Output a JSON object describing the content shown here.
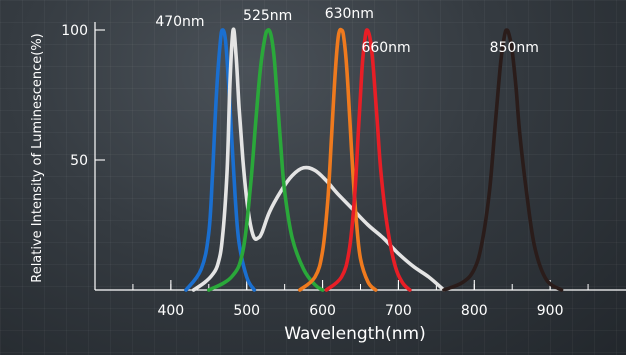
{
  "chart_data": {
    "type": "line",
    "title": "",
    "xlabel": "Wavelength(nm)",
    "ylabel": "Relative Intensity of Luminescence(%)",
    "xlim": [
      300,
      1000
    ],
    "ylim": [
      0,
      100
    ],
    "x_ticks": [
      400,
      500,
      600,
      700,
      800,
      900
    ],
    "y_ticks": [
      50,
      100
    ],
    "grid": false,
    "legend": "none",
    "series": [
      {
        "color": "#1a6fd0",
        "x": [
          420,
          440,
          450,
          455,
          460,
          465,
          468,
          472,
          476,
          480,
          485,
          490,
          500,
          510
        ],
        "y": [
          0,
          8,
          22,
          45,
          75,
          95,
          100,
          96,
          80,
          60,
          35,
          18,
          5,
          0
        ]
      },
      {
        "color": "#e4e4e4",
        "x": [
          430,
          445,
          455,
          462,
          468,
          474,
          478,
          482,
          486,
          490,
          495,
          500,
          505,
          510,
          515,
          520,
          530,
          545,
          560,
          575,
          590,
          605,
          620,
          640,
          660,
          680,
          700,
          720,
          740,
          760
        ],
        "y": [
          0,
          3,
          6,
          10,
          20,
          45,
          80,
          100,
          90,
          70,
          50,
          35,
          25,
          20,
          20,
          22,
          30,
          38,
          44,
          47,
          46,
          42,
          37,
          31,
          25,
          20,
          14,
          9,
          5,
          0
        ]
      },
      {
        "color": "#2aa83a",
        "x": [
          450,
          480,
          495,
          505,
          512,
          518,
          524,
          528,
          532,
          536,
          540,
          545,
          550,
          560,
          575,
          590,
          600
        ],
        "y": [
          0,
          5,
          15,
          40,
          65,
          85,
          97,
          100,
          98,
          90,
          75,
          55,
          38,
          20,
          8,
          2,
          0
        ]
      },
      {
        "color": "#ef7a1e",
        "x": [
          570,
          590,
          600,
          607,
          612,
          617,
          621,
          625,
          628,
          632,
          636,
          640,
          645,
          650,
          660,
          670
        ],
        "y": [
          0,
          5,
          15,
          35,
          60,
          85,
          98,
          100,
          97,
          85,
          65,
          45,
          25,
          12,
          3,
          0
        ]
      },
      {
        "color": "#e81e26",
        "x": [
          605,
          625,
          635,
          642,
          647,
          652,
          656,
          659,
          663,
          667,
          672,
          677,
          685,
          695,
          705,
          715
        ],
        "y": [
          0,
          5,
          15,
          35,
          60,
          85,
          97,
          100,
          96,
          85,
          65,
          45,
          25,
          10,
          3,
          0
        ]
      },
      {
        "color": "#2a1c1a",
        "x": [
          760,
          785,
          800,
          810,
          820,
          828,
          835,
          840,
          843,
          846,
          850,
          855,
          860,
          870,
          880,
          895,
          915
        ],
        "y": [
          0,
          3,
          8,
          18,
          38,
          65,
          88,
          98,
          100,
          98,
          92,
          78,
          60,
          35,
          16,
          4,
          0
        ]
      }
    ],
    "annotations": [
      {
        "text": "470nm",
        "x": 470,
        "y": 100
      },
      {
        "text": "525nm",
        "x": 525,
        "y": 100
      },
      {
        "text": "630nm",
        "x": 630,
        "y": 100
      },
      {
        "text": "660nm",
        "x": 660,
        "y": 100
      },
      {
        "text": "850nm",
        "x": 850,
        "y": 100
      }
    ]
  }
}
